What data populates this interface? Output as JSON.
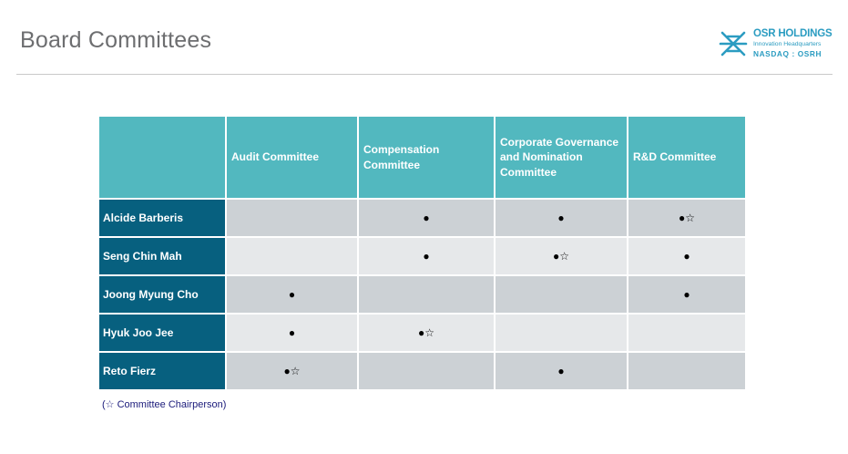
{
  "page": {
    "title": "Board Committees",
    "footnote": "(☆ Committee Chairperson)"
  },
  "logo": {
    "name": "OSR HOLDINGS",
    "tagline": "Innovation Headquarters",
    "ticker": "NASDAQ : OSRH",
    "color": "#2b9cc1"
  },
  "colors": {
    "header_bg": "#52b8bf",
    "name_bg": "#07607f",
    "row_dark": "#ccd1d5",
    "row_light": "#e6e8ea"
  },
  "table": {
    "corner": "",
    "columns": [
      "Audit Committee",
      "Compensation Committee",
      "Corporate Governance and Nomination Committee",
      "R&D Committee"
    ],
    "rows": [
      {
        "name": "Alcide Barberis",
        "cells": [
          "",
          "●",
          "●",
          "●☆"
        ]
      },
      {
        "name": "Seng Chin Mah",
        "cells": [
          "",
          "●",
          "●☆",
          "●"
        ]
      },
      {
        "name": "Joong Myung Cho",
        "cells": [
          "●",
          "",
          "",
          "●"
        ]
      },
      {
        "name": "Hyuk Joo Jee",
        "cells": [
          "●",
          "●☆",
          "",
          ""
        ]
      },
      {
        "name": "Reto Fierz",
        "cells": [
          "●☆",
          "",
          "●",
          ""
        ]
      }
    ]
  }
}
